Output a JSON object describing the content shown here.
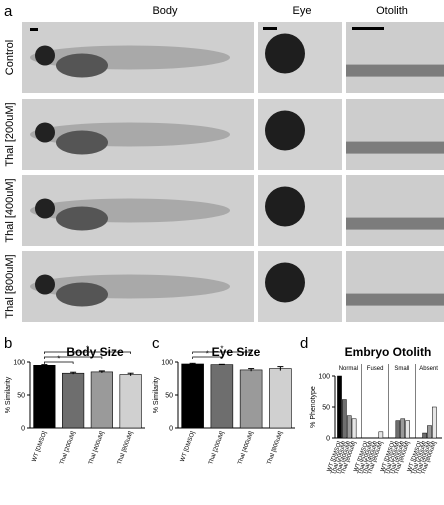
{
  "figure": {
    "panel_labels": [
      "a",
      "b",
      "c",
      "d"
    ],
    "columns": [
      "Body",
      "Eye",
      "Otolith"
    ],
    "rows": [
      "Control",
      "Thal [200uM]",
      "Thal [400uM]",
      "Thal [800uM]"
    ]
  },
  "chart_data": [
    {
      "type": "bar",
      "title": "Body Size",
      "y_label": "% Similarity",
      "categories": [
        "WT [DMSO]",
        "Thal [200uM]",
        "Thal [400uM]",
        "Thal [800uM]"
      ],
      "values": [
        95,
        83,
        85,
        81
      ],
      "errors": [
        1,
        1.5,
        1.5,
        2
      ],
      "colors": [
        "#000000",
        "#6e6e6e",
        "#9a9a9a",
        "#d0d0d0"
      ],
      "ylim": [
        0,
        100
      ],
      "yticks": [
        0,
        50,
        100
      ],
      "annotations": [
        "*",
        "*",
        "*"
      ]
    },
    {
      "type": "bar",
      "title": "Eye Size",
      "y_label": "% Similarity",
      "categories": [
        "WT [DMSO]",
        "Thal [200uM]",
        "Thal [400uM]",
        "Thal [800uM]"
      ],
      "values": [
        97,
        96,
        88,
        90
      ],
      "errors": [
        1,
        0.5,
        2,
        3
      ],
      "colors": [
        "#000000",
        "#6e6e6e",
        "#9a9a9a",
        "#d0d0d0"
      ],
      "ylim": [
        0,
        100
      ],
      "yticks": [
        0,
        50,
        100
      ],
      "annotations": [
        "*",
        "*"
      ]
    },
    {
      "type": "grouped_bar",
      "title": "Embryo Otolith",
      "y_label": "% Phenotype",
      "categories": [
        "Normal",
        "Fused",
        "Small",
        "Absent"
      ],
      "series": [
        {
          "name": "WT [DMSO]",
          "color": "#000000",
          "values": [
            100,
            0,
            0,
            0
          ]
        },
        {
          "name": "Thal [200uM]",
          "color": "#6e6e6e",
          "values": [
            62,
            0,
            28,
            8
          ]
        },
        {
          "name": "Thal [400uM]",
          "color": "#9a9a9a",
          "values": [
            36,
            0,
            31,
            20
          ]
        },
        {
          "name": "Thal [800uM]",
          "color": "#e6e6e6",
          "values": [
            31,
            10,
            28,
            50
          ]
        }
      ],
      "ylim": [
        0,
        100
      ],
      "yticks": [
        0,
        50,
        100
      ]
    }
  ]
}
